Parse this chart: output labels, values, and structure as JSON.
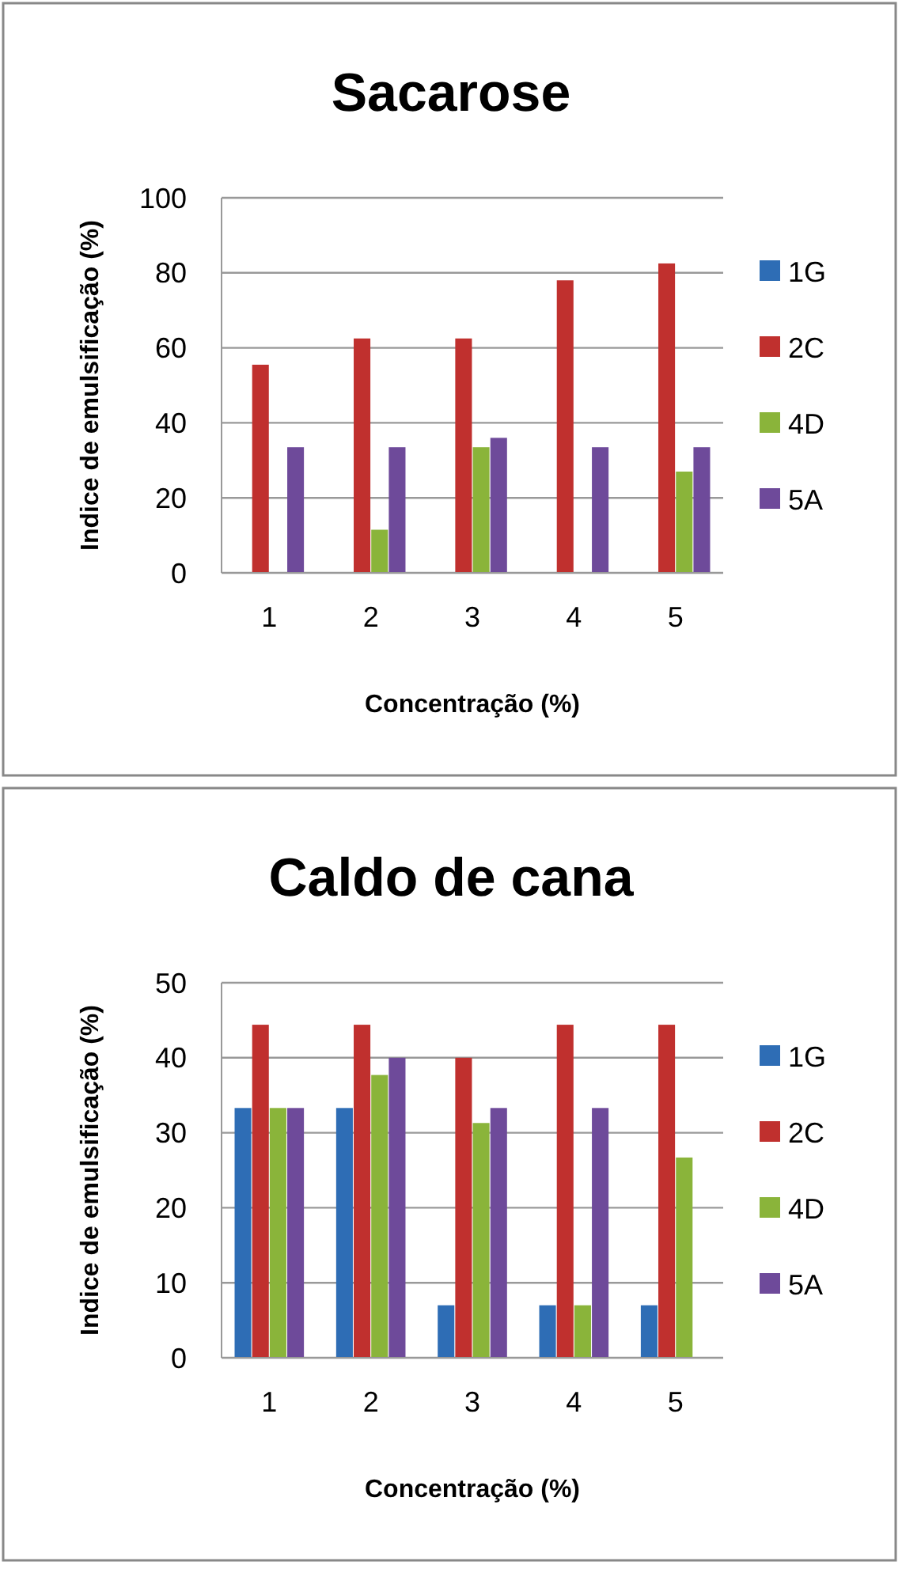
{
  "chart_data": [
    {
      "type": "bar",
      "title": "Sacarose",
      "xlabel": "Concentração (%)",
      "ylabel": "Indice de emulsificação (%)",
      "categories": [
        "1",
        "2",
        "3",
        "4",
        "5"
      ],
      "series": [
        {
          "name": "1G",
          "color": "#2e6db5",
          "values": [
            0,
            0,
            0,
            0,
            0
          ]
        },
        {
          "name": "2C",
          "color": "#c0302e",
          "values": [
            55.5,
            62.5,
            62.5,
            78,
            82.5
          ]
        },
        {
          "name": "4D",
          "color": "#8ab43a",
          "values": [
            0,
            11.5,
            33.5,
            0,
            27
          ]
        },
        {
          "name": "5A",
          "color": "#6e4a9a",
          "values": [
            33.5,
            33.5,
            36,
            33.5,
            33.5
          ]
        }
      ],
      "ylim": [
        0,
        100
      ],
      "yticks": [
        0,
        20,
        40,
        60,
        80,
        100
      ],
      "grid": "y",
      "legend": "right"
    },
    {
      "type": "bar",
      "title": "Caldo de cana",
      "xlabel": "Concentração (%)",
      "ylabel": "Indice de emulsificação (%)",
      "categories": [
        "1",
        "2",
        "3",
        "4",
        "5"
      ],
      "series": [
        {
          "name": "1G",
          "color": "#2e6db5",
          "values": [
            33.3,
            33.3,
            7,
            7,
            7
          ]
        },
        {
          "name": "2C",
          "color": "#c0302e",
          "values": [
            44.4,
            44.4,
            40,
            44.4,
            44.4
          ]
        },
        {
          "name": "4D",
          "color": "#8ab43a",
          "values": [
            33.3,
            37.7,
            31.3,
            7,
            26.7
          ]
        },
        {
          "name": "5A",
          "color": "#6e4a9a",
          "values": [
            33.3,
            40,
            33.3,
            33.3,
            0
          ]
        }
      ],
      "ylim": [
        0,
        50
      ],
      "yticks": [
        0,
        10,
        20,
        30,
        40,
        50
      ],
      "grid": "y",
      "legend": "right"
    }
  ]
}
